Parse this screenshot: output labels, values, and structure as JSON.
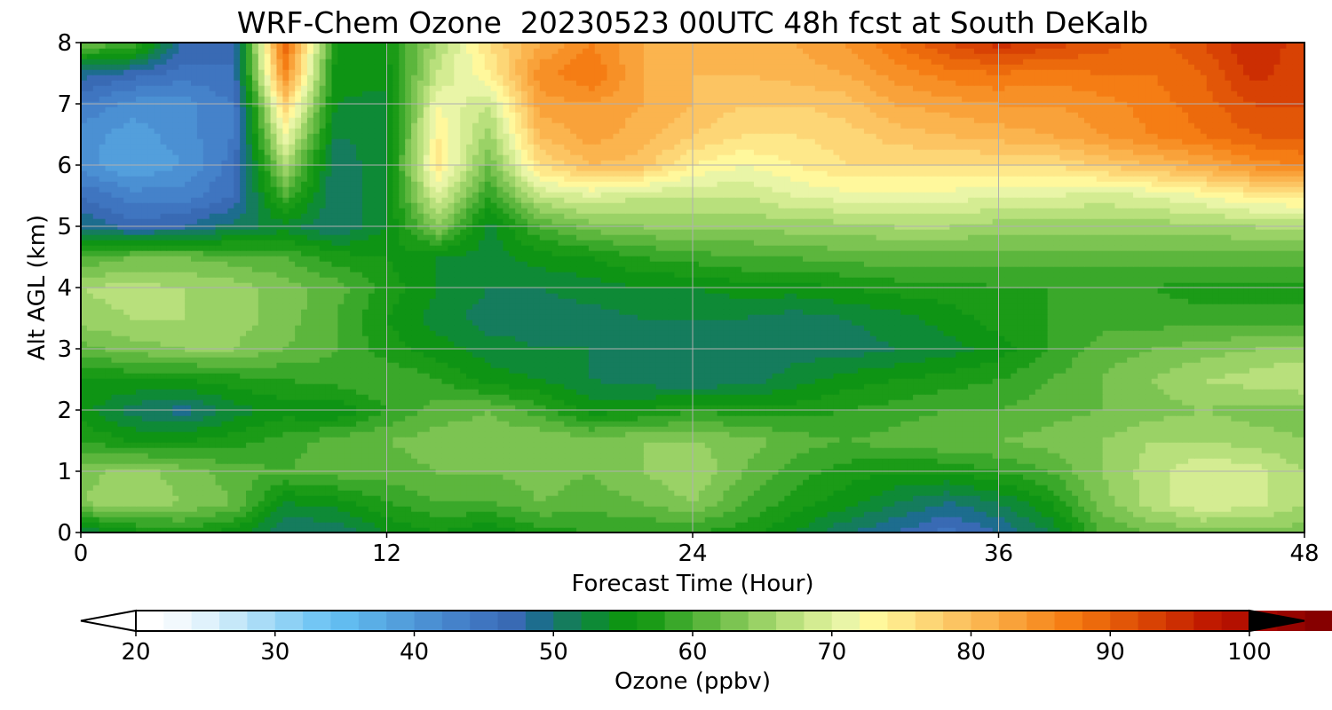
{
  "chart_data": {
    "type": "heatmap",
    "title": "WRF-Chem Ozone  20230523 00UTC 48h fcst at South DeKalb",
    "xlabel": "Forecast Time (Hour)",
    "ylabel": "Alt AGL (km)",
    "xlim": [
      0,
      48
    ],
    "ylim": [
      0,
      8
    ],
    "x_ticks": [
      "0",
      "12",
      "24",
      "36",
      "48"
    ],
    "y_ticks": [
      "0",
      "1",
      "2",
      "3",
      "4",
      "5",
      "6",
      "7",
      "8"
    ],
    "grid": true,
    "x": [
      0,
      2,
      4,
      6,
      8,
      10,
      12,
      14,
      16,
      18,
      20,
      22,
      24,
      26,
      28,
      30,
      32,
      34,
      36,
      38,
      40,
      42,
      44,
      46,
      48
    ],
    "y": [
      0,
      0.5,
      1,
      1.5,
      2,
      2.5,
      3,
      3.5,
      4,
      4.5,
      5,
      5.5,
      6,
      6.5,
      7,
      7.5,
      8
    ],
    "z": [
      [
        52,
        55,
        57,
        55,
        50,
        50,
        54,
        56,
        54,
        57,
        58,
        58,
        58,
        57,
        54,
        50,
        48,
        45,
        48,
        52,
        60,
        62,
        63,
        63,
        63
      ],
      [
        64,
        66,
        64,
        62,
        54,
        55,
        58,
        60,
        60,
        62,
        61,
        62,
        64,
        60,
        57,
        55,
        52,
        50,
        52,
        56,
        63,
        67,
        70,
        69,
        66
      ],
      [
        63,
        65,
        63,
        61,
        60,
        61,
        61,
        62,
        62,
        63,
        62,
        64,
        66,
        62,
        59,
        57,
        56,
        56,
        58,
        60,
        64,
        67,
        70,
        69,
        66
      ],
      [
        58,
        56,
        56,
        57,
        59,
        61,
        62,
        63,
        63,
        64,
        63,
        64,
        64,
        63,
        61,
        60,
        61,
        62,
        62,
        63,
        64,
        66,
        66,
        65,
        64
      ],
      [
        55,
        51,
        49,
        53,
        55,
        54,
        58,
        61,
        62,
        59,
        55,
        56,
        58,
        57,
        57,
        58,
        59,
        60,
        60,
        61,
        62,
        63,
        64,
        63,
        63
      ],
      [
        56,
        56,
        56,
        57,
        58,
        59,
        60,
        58,
        55,
        54,
        52,
        51,
        50,
        51,
        53,
        55,
        56,
        57,
        58,
        60,
        62,
        64,
        66,
        67,
        68
      ],
      [
        61,
        63,
        64,
        64,
        62,
        60,
        57,
        55,
        53,
        52,
        52,
        51,
        51,
        50,
        51,
        51,
        52,
        53,
        55,
        58,
        61,
        62,
        63,
        64,
        65
      ],
      [
        65,
        66,
        66,
        65,
        63,
        60,
        56,
        53,
        51,
        51,
        51,
        52,
        52,
        52,
        51,
        52,
        53,
        55,
        57,
        58,
        59,
        59,
        59,
        59,
        59
      ],
      [
        66,
        67,
        66,
        65,
        63,
        61,
        57,
        54,
        52,
        52,
        53,
        54,
        54,
        55,
        55,
        56,
        57,
        57,
        58,
        58,
        58,
        58,
        57,
        57,
        57
      ],
      [
        60,
        62,
        62,
        61,
        60,
        57,
        56,
        54,
        53,
        55,
        56,
        58,
        59,
        60,
        60,
        61,
        61,
        61,
        61,
        61,
        61,
        61,
        61,
        61,
        61
      ],
      [
        50,
        47,
        48,
        51,
        53,
        50,
        54,
        64,
        53,
        60,
        63,
        64,
        64,
        64,
        65,
        65,
        66,
        66,
        65,
        65,
        65,
        65,
        65,
        66,
        66
      ],
      [
        46,
        43,
        43,
        46,
        60,
        50,
        54,
        70,
        58,
        68,
        70,
        68,
        68,
        68,
        70,
        71,
        71,
        71,
        70,
        70,
        69,
        70,
        72,
        74,
        75
      ],
      [
        41,
        38,
        40,
        45,
        66,
        50,
        54,
        75,
        62,
        76,
        80,
        79,
        74,
        72,
        74,
        76,
        76,
        76,
        76,
        76,
        78,
        80,
        82,
        85,
        86
      ],
      [
        41,
        39,
        41,
        44,
        72,
        52,
        53,
        74,
        65,
        80,
        83,
        81,
        78,
        76,
        76,
        77,
        79,
        80,
        81,
        82,
        84,
        86,
        88,
        90,
        91
      ],
      [
        44,
        41,
        41,
        44,
        78,
        54,
        53,
        72,
        68,
        83,
        84,
        82,
        80,
        78,
        78,
        79,
        82,
        83,
        84,
        84,
        85,
        87,
        89,
        92,
        92
      ],
      [
        49,
        47,
        45,
        46,
        86,
        55,
        55,
        68,
        74,
        85,
        88,
        82,
        80,
        80,
        81,
        82,
        85,
        87,
        88,
        87,
        88,
        88,
        90,
        95,
        92
      ],
      [
        62,
        60,
        48,
        46,
        90,
        56,
        56,
        66,
        76,
        82,
        86,
        82,
        81,
        81,
        82,
        84,
        88,
        92,
        95,
        93,
        91,
        89,
        92,
        96,
        93
      ]
    ],
    "colorbar": {
      "label": "Ozone  (ppbv)",
      "min": 20,
      "max": 100,
      "step": 2,
      "extend": "both",
      "ticks": [
        "20",
        "30",
        "40",
        "50",
        "60",
        "70",
        "80",
        "90",
        "100"
      ],
      "colors": [
        "#ffffff",
        "#f2f9fd",
        "#e0f2fc",
        "#c6e8f9",
        "#a9dcf7",
        "#8ed1f5",
        "#73c6f4",
        "#62bcf0",
        "#5aaee6",
        "#539fdc",
        "#4b90d3",
        "#4582ca",
        "#3f75c0",
        "#396ab4",
        "#1d6d8e",
        "#157c5d",
        "#0e8a36",
        "#0e9414",
        "#1b9b17",
        "#3aa82a",
        "#5cb63d",
        "#7cc452",
        "#9ad266",
        "#b8e07c",
        "#d4ec92",
        "#e9f5a7",
        "#fff89c",
        "#fee88a",
        "#fdd676",
        "#fcc462",
        "#fbb44e",
        "#f9a23a",
        "#f79026",
        "#f57d14",
        "#ec6a0c",
        "#e25608",
        "#d84204",
        "#cc2e02",
        "#c01a00",
        "#b41000",
        "#a50800",
        "#960400",
        "#860000",
        "#760000",
        "#650000",
        "#540000",
        "#420000",
        "#300000",
        "#1e0000",
        "#0c0000"
      ]
    }
  }
}
